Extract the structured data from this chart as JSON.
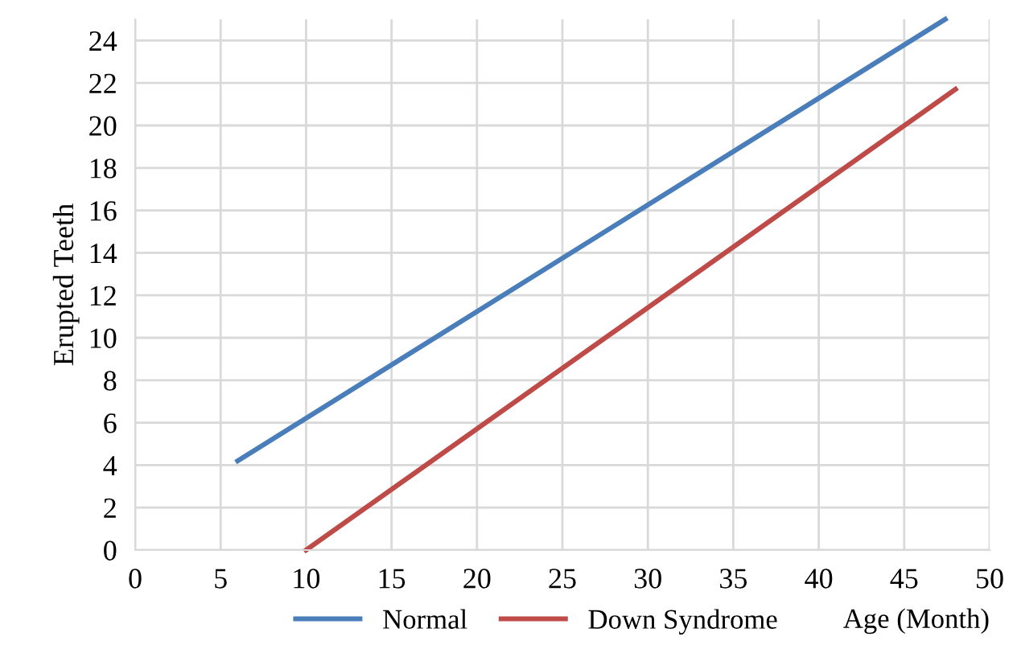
{
  "chart_data": {
    "type": "line",
    "xlabel": "Age (Month)",
    "ylabel": "Erupted Teeth",
    "xlim": [
      0,
      50
    ],
    "xticks": [
      0,
      5,
      10,
      15,
      20,
      25,
      30,
      35,
      40,
      45,
      50
    ],
    "ylim": [
      0,
      25
    ],
    "yticks": [
      0,
      2,
      4,
      6,
      8,
      10,
      12,
      14,
      16,
      18,
      20,
      22,
      24
    ],
    "grid": true,
    "legend": "bottom",
    "marker": "none",
    "line_style": "solid",
    "series": [
      {
        "name": "Normal",
        "color": "#4a7ebb",
        "x": [
          6,
          47.4
        ],
        "values": [
          4.2,
          25
        ]
      },
      {
        "name": "Down Syndrome",
        "color": "#be4b48",
        "x": [
          10,
          48
        ],
        "values": [
          0,
          21.7
        ]
      }
    ]
  }
}
